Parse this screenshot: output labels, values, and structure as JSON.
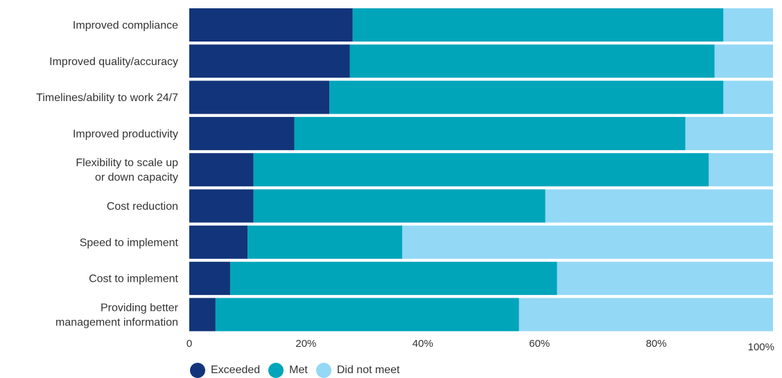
{
  "chart_data": {
    "type": "bar",
    "orientation": "horizontal",
    "stacked": true,
    "categories": [
      [
        "Improved compliance"
      ],
      [
        "Improved quality/accuracy"
      ],
      [
        "Timelines/ability to work 24/7"
      ],
      [
        "Improved productivity"
      ],
      [
        "Flexibility to scale up",
        "or down capacity"
      ],
      [
        "Cost reduction"
      ],
      [
        "Speed to implement"
      ],
      [
        "Cost to implement"
      ],
      [
        "Providing better",
        "management information"
      ]
    ],
    "series": [
      {
        "name": "Exceeded",
        "color": "#12347A",
        "values": [
          28,
          27.5,
          24,
          18,
          11,
          11,
          10,
          7,
          4.5
        ]
      },
      {
        "name": "Met",
        "color": "#00A5BA",
        "values": [
          63.5,
          62.5,
          67.5,
          67,
          78,
          50,
          26.5,
          56,
          52
        ]
      },
      {
        "name": "Did not meet",
        "color": "#93D8F5",
        "values": [
          8.5,
          10,
          8.5,
          15,
          11,
          39,
          63.5,
          37,
          43.5
        ]
      }
    ],
    "x_ticks": [
      "0",
      "20%",
      "40%",
      "60%",
      "80%",
      "100%"
    ],
    "xlim": [
      0,
      100
    ],
    "legend_position": "bottom-left",
    "grid": false
  }
}
